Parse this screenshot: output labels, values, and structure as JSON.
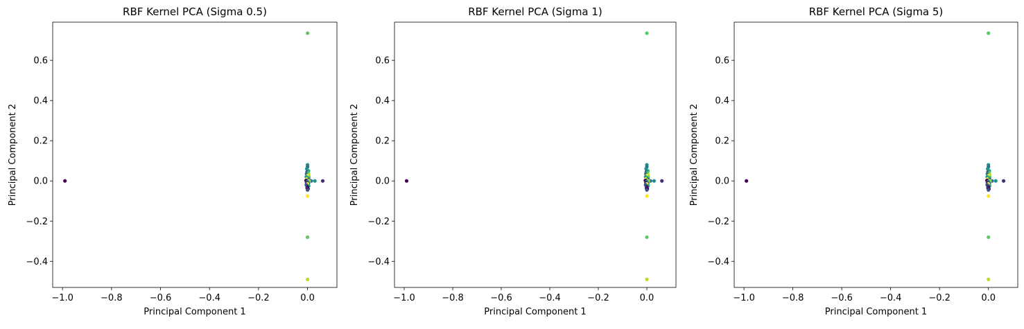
{
  "chart_data": [
    {
      "type": "scatter",
      "title": "RBF Kernel PCA (Sigma 0.5)",
      "xlabel": "Principal Component 1",
      "ylabel": "Principal Component 2",
      "xlim": [
        -1.04,
        0.12
      ],
      "ylim": [
        -0.53,
        0.79
      ],
      "xticks": [
        -1.0,
        -0.8,
        -0.6,
        -0.4,
        -0.2,
        0.0
      ],
      "xtick_labels": [
        "−1.0",
        "−0.8",
        "−0.6",
        "−0.4",
        "−0.2",
        "0.0"
      ],
      "yticks": [
        -0.4,
        -0.2,
        0.0,
        0.2,
        0.4,
        0.6
      ],
      "ytick_labels": [
        "−0.4",
        "−0.2",
        "0.0",
        "0.2",
        "0.4",
        "0.6"
      ],
      "grid": false,
      "colormap": "viridis",
      "points": [
        {
          "x": -0.99,
          "y": 0.0,
          "color": "#440154"
        },
        {
          "x": 0.0,
          "y": 0.735,
          "color": "#5ec962"
        },
        {
          "x": 0.0,
          "y": -0.28,
          "color": "#5ec962"
        },
        {
          "x": 0.0,
          "y": -0.49,
          "color": "#b5de2b"
        },
        {
          "x": 0.0,
          "y": -0.075,
          "color": "#fde725"
        },
        {
          "x": 0.062,
          "y": 0.0,
          "color": "#472d7b"
        },
        {
          "x": 0.03,
          "y": 0.0,
          "color": "#21918c"
        },
        {
          "x": 0.015,
          "y": 0.0,
          "color": "#2c728e"
        },
        {
          "x": 0.0,
          "y": 0.08,
          "color": "#21918c"
        },
        {
          "x": 0.0,
          "y": 0.07,
          "color": "#2c728e"
        },
        {
          "x": -0.003,
          "y": 0.06,
          "color": "#21918c"
        },
        {
          "x": 0.004,
          "y": 0.05,
          "color": "#27ad81"
        },
        {
          "x": -0.002,
          "y": 0.045,
          "color": "#3b528b"
        },
        {
          "x": 0.003,
          "y": 0.04,
          "color": "#5ec962"
        },
        {
          "x": -0.004,
          "y": 0.035,
          "color": "#2c728e"
        },
        {
          "x": 0.005,
          "y": 0.03,
          "color": "#b5de2b"
        },
        {
          "x": 0.0,
          "y": 0.025,
          "color": "#fde725"
        },
        {
          "x": -0.005,
          "y": 0.02,
          "color": "#21918c"
        },
        {
          "x": 0.006,
          "y": 0.018,
          "color": "#5ec962"
        },
        {
          "x": 0.0,
          "y": 0.015,
          "color": "#27ad81"
        },
        {
          "x": -0.003,
          "y": 0.01,
          "color": "#fde725"
        },
        {
          "x": 0.004,
          "y": 0.008,
          "color": "#3b528b"
        },
        {
          "x": 0.0,
          "y": 0.005,
          "color": "#5ec962"
        },
        {
          "x": -0.006,
          "y": 0.002,
          "color": "#440154"
        },
        {
          "x": 0.006,
          "y": 0.0,
          "color": "#b5de2b"
        },
        {
          "x": 0.0,
          "y": -0.003,
          "color": "#21918c"
        },
        {
          "x": -0.004,
          "y": -0.008,
          "color": "#472d7b"
        },
        {
          "x": 0.004,
          "y": -0.012,
          "color": "#2c728e"
        },
        {
          "x": 0.0,
          "y": -0.015,
          "color": "#fde725"
        },
        {
          "x": -0.005,
          "y": -0.02,
          "color": "#3b528b"
        },
        {
          "x": 0.005,
          "y": -0.025,
          "color": "#27ad81"
        },
        {
          "x": 0.0,
          "y": -0.03,
          "color": "#440154"
        },
        {
          "x": -0.002,
          "y": -0.035,
          "color": "#472d7b"
        },
        {
          "x": 0.002,
          "y": -0.04,
          "color": "#440154"
        },
        {
          "x": 0.0,
          "y": -0.045,
          "color": "#3b528b"
        }
      ]
    },
    {
      "type": "scatter",
      "title": "RBF Kernel PCA (Sigma 1)",
      "xlabel": "Principal Component 1",
      "ylabel": "Principal Component 2",
      "xlim": [
        -1.04,
        0.12
      ],
      "ylim": [
        -0.53,
        0.79
      ],
      "xticks": [
        -1.0,
        -0.8,
        -0.6,
        -0.4,
        -0.2,
        0.0
      ],
      "xtick_labels": [
        "−1.0",
        "−0.8",
        "−0.6",
        "−0.4",
        "−0.2",
        "0.0"
      ],
      "yticks": [
        -0.4,
        -0.2,
        0.0,
        0.2,
        0.4,
        0.6
      ],
      "ytick_labels": [
        "−0.4",
        "−0.2",
        "0.0",
        "0.2",
        "0.4",
        "0.6"
      ],
      "grid": false,
      "colormap": "viridis",
      "points": [
        {
          "x": -0.99,
          "y": 0.0,
          "color": "#440154"
        },
        {
          "x": 0.0,
          "y": 0.735,
          "color": "#5ec962"
        },
        {
          "x": 0.0,
          "y": -0.28,
          "color": "#5ec962"
        },
        {
          "x": 0.0,
          "y": -0.49,
          "color": "#b5de2b"
        },
        {
          "x": 0.0,
          "y": -0.075,
          "color": "#fde725"
        },
        {
          "x": 0.062,
          "y": 0.0,
          "color": "#472d7b"
        },
        {
          "x": 0.03,
          "y": 0.0,
          "color": "#21918c"
        },
        {
          "x": 0.015,
          "y": 0.0,
          "color": "#2c728e"
        },
        {
          "x": 0.0,
          "y": 0.08,
          "color": "#21918c"
        },
        {
          "x": 0.0,
          "y": 0.07,
          "color": "#2c728e"
        },
        {
          "x": -0.003,
          "y": 0.06,
          "color": "#21918c"
        },
        {
          "x": 0.004,
          "y": 0.05,
          "color": "#27ad81"
        },
        {
          "x": -0.002,
          "y": 0.045,
          "color": "#3b528b"
        },
        {
          "x": 0.003,
          "y": 0.04,
          "color": "#5ec962"
        },
        {
          "x": -0.004,
          "y": 0.035,
          "color": "#2c728e"
        },
        {
          "x": 0.005,
          "y": 0.03,
          "color": "#b5de2b"
        },
        {
          "x": 0.0,
          "y": 0.025,
          "color": "#fde725"
        },
        {
          "x": -0.005,
          "y": 0.02,
          "color": "#21918c"
        },
        {
          "x": 0.006,
          "y": 0.018,
          "color": "#5ec962"
        },
        {
          "x": 0.0,
          "y": 0.015,
          "color": "#27ad81"
        },
        {
          "x": -0.003,
          "y": 0.01,
          "color": "#fde725"
        },
        {
          "x": 0.004,
          "y": 0.008,
          "color": "#3b528b"
        },
        {
          "x": 0.0,
          "y": 0.005,
          "color": "#5ec962"
        },
        {
          "x": -0.006,
          "y": 0.002,
          "color": "#440154"
        },
        {
          "x": 0.006,
          "y": 0.0,
          "color": "#b5de2b"
        },
        {
          "x": 0.0,
          "y": -0.003,
          "color": "#21918c"
        },
        {
          "x": -0.004,
          "y": -0.008,
          "color": "#472d7b"
        },
        {
          "x": 0.004,
          "y": -0.012,
          "color": "#2c728e"
        },
        {
          "x": 0.0,
          "y": -0.015,
          "color": "#fde725"
        },
        {
          "x": -0.005,
          "y": -0.02,
          "color": "#3b528b"
        },
        {
          "x": 0.005,
          "y": -0.025,
          "color": "#27ad81"
        },
        {
          "x": 0.0,
          "y": -0.03,
          "color": "#440154"
        },
        {
          "x": -0.002,
          "y": -0.035,
          "color": "#472d7b"
        },
        {
          "x": 0.002,
          "y": -0.04,
          "color": "#440154"
        },
        {
          "x": 0.0,
          "y": -0.045,
          "color": "#3b528b"
        }
      ]
    },
    {
      "type": "scatter",
      "title": "RBF Kernel PCA (Sigma 5)",
      "xlabel": "Principal Component 1",
      "ylabel": "Principal Component 2",
      "xlim": [
        -1.04,
        0.12
      ],
      "ylim": [
        -0.53,
        0.79
      ],
      "xticks": [
        -1.0,
        -0.8,
        -0.6,
        -0.4,
        -0.2,
        0.0
      ],
      "xtick_labels": [
        "−1.0",
        "−0.8",
        "−0.6",
        "−0.4",
        "−0.2",
        "0.0"
      ],
      "yticks": [
        -0.4,
        -0.2,
        0.0,
        0.2,
        0.4,
        0.6
      ],
      "ytick_labels": [
        "−0.4",
        "−0.2",
        "0.0",
        "0.2",
        "0.4",
        "0.6"
      ],
      "grid": false,
      "colormap": "viridis",
      "points": [
        {
          "x": -0.99,
          "y": 0.0,
          "color": "#440154"
        },
        {
          "x": 0.0,
          "y": 0.735,
          "color": "#5ec962"
        },
        {
          "x": 0.0,
          "y": -0.28,
          "color": "#5ec962"
        },
        {
          "x": 0.0,
          "y": -0.49,
          "color": "#b5de2b"
        },
        {
          "x": 0.0,
          "y": -0.075,
          "color": "#fde725"
        },
        {
          "x": 0.062,
          "y": 0.0,
          "color": "#472d7b"
        },
        {
          "x": 0.03,
          "y": 0.0,
          "color": "#21918c"
        },
        {
          "x": 0.015,
          "y": 0.0,
          "color": "#2c728e"
        },
        {
          "x": 0.0,
          "y": 0.08,
          "color": "#21918c"
        },
        {
          "x": 0.0,
          "y": 0.07,
          "color": "#2c728e"
        },
        {
          "x": -0.003,
          "y": 0.06,
          "color": "#21918c"
        },
        {
          "x": 0.004,
          "y": 0.05,
          "color": "#27ad81"
        },
        {
          "x": -0.002,
          "y": 0.045,
          "color": "#3b528b"
        },
        {
          "x": 0.003,
          "y": 0.04,
          "color": "#5ec962"
        },
        {
          "x": -0.004,
          "y": 0.035,
          "color": "#2c728e"
        },
        {
          "x": 0.005,
          "y": 0.03,
          "color": "#b5de2b"
        },
        {
          "x": 0.0,
          "y": 0.025,
          "color": "#fde725"
        },
        {
          "x": -0.005,
          "y": 0.02,
          "color": "#21918c"
        },
        {
          "x": 0.006,
          "y": 0.018,
          "color": "#5ec962"
        },
        {
          "x": 0.0,
          "y": 0.015,
          "color": "#27ad81"
        },
        {
          "x": -0.003,
          "y": 0.01,
          "color": "#fde725"
        },
        {
          "x": 0.004,
          "y": 0.008,
          "color": "#3b528b"
        },
        {
          "x": 0.0,
          "y": 0.005,
          "color": "#5ec962"
        },
        {
          "x": -0.006,
          "y": 0.002,
          "color": "#440154"
        },
        {
          "x": 0.006,
          "y": 0.0,
          "color": "#b5de2b"
        },
        {
          "x": 0.0,
          "y": -0.003,
          "color": "#21918c"
        },
        {
          "x": -0.004,
          "y": -0.008,
          "color": "#472d7b"
        },
        {
          "x": 0.004,
          "y": -0.012,
          "color": "#2c728e"
        },
        {
          "x": 0.0,
          "y": -0.015,
          "color": "#fde725"
        },
        {
          "x": -0.005,
          "y": -0.02,
          "color": "#3b528b"
        },
        {
          "x": 0.005,
          "y": -0.025,
          "color": "#27ad81"
        },
        {
          "x": 0.0,
          "y": -0.03,
          "color": "#440154"
        },
        {
          "x": -0.002,
          "y": -0.035,
          "color": "#472d7b"
        },
        {
          "x": 0.002,
          "y": -0.04,
          "color": "#440154"
        },
        {
          "x": 0.0,
          "y": -0.045,
          "color": "#3b528b"
        }
      ]
    }
  ]
}
